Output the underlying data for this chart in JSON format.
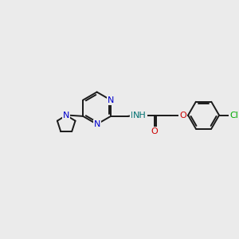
{
  "bg_color": "#ebebeb",
  "bond_color": "#1a1a1a",
  "n_color": "#0000cc",
  "o_color": "#cc0000",
  "cl_color": "#00aa00",
  "nh_color": "#007070",
  "figsize": [
    3.0,
    3.0
  ],
  "dpi": 100,
  "xlim": [
    0,
    12
  ],
  "ylim": [
    0,
    12
  ]
}
